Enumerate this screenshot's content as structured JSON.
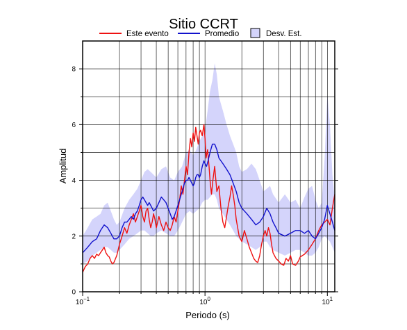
{
  "chart_data": {
    "type": "line",
    "title": "Sitio CCRT",
    "xlabel": "Periodo (s)",
    "ylabel": "Amplitud",
    "xscale": "log",
    "xlim": [
      0.1,
      11.5
    ],
    "ylim": [
      0,
      9
    ],
    "grid": true,
    "legend_position": "top",
    "x_ticks": [
      {
        "value": 0.1,
        "base": "10",
        "exp": "−1"
      },
      {
        "value": 1,
        "base": "10",
        "exp": "0"
      },
      {
        "value": 10,
        "base": "10",
        "exp": "1"
      }
    ],
    "y_ticks": [
      {
        "value": 0,
        "label": "0"
      },
      {
        "value": 2,
        "label": "2"
      },
      {
        "value": 4,
        "label": "4"
      },
      {
        "value": 6,
        "label": "6"
      },
      {
        "value": 8,
        "label": "8"
      }
    ],
    "legend": [
      {
        "kind": "line",
        "label": "Este evento",
        "color": "#ee1111"
      },
      {
        "kind": "line",
        "label": "Promedio",
        "color": "#1111cc"
      },
      {
        "kind": "box",
        "label": "Desv. Est.",
        "color": "#d4d4fb"
      }
    ],
    "series": [
      {
        "name": "Este evento",
        "color": "#ee1111",
        "x": [
          0.1,
          0.105,
          0.11,
          0.115,
          0.12,
          0.125,
          0.13,
          0.135,
          0.14,
          0.145,
          0.15,
          0.155,
          0.16,
          0.165,
          0.17,
          0.175,
          0.18,
          0.19,
          0.2,
          0.21,
          0.22,
          0.23,
          0.24,
          0.25,
          0.26,
          0.27,
          0.28,
          0.29,
          0.3,
          0.31,
          0.32,
          0.33,
          0.34,
          0.35,
          0.36,
          0.37,
          0.38,
          0.39,
          0.4,
          0.42,
          0.44,
          0.46,
          0.48,
          0.5,
          0.52,
          0.54,
          0.56,
          0.58,
          0.6,
          0.62,
          0.64,
          0.66,
          0.68,
          0.7,
          0.72,
          0.74,
          0.76,
          0.78,
          0.8,
          0.82,
          0.84,
          0.86,
          0.88,
          0.9,
          0.92,
          0.95,
          0.98,
          1.0,
          1.02,
          1.05,
          1.08,
          1.1,
          1.13,
          1.16,
          1.2,
          1.25,
          1.3,
          1.35,
          1.4,
          1.45,
          1.5,
          1.55,
          1.6,
          1.65,
          1.7,
          1.75,
          1.8,
          1.85,
          1.9,
          1.95,
          2.0,
          2.1,
          2.2,
          2.3,
          2.4,
          2.5,
          2.6,
          2.7,
          2.8,
          2.9,
          3.0,
          3.1,
          3.2,
          3.3,
          3.4,
          3.5,
          3.6,
          3.8,
          4.0,
          4.2,
          4.4,
          4.6,
          4.8,
          5.0,
          5.2,
          5.5,
          5.8,
          6.0,
          6.5,
          7.0,
          7.5,
          8.0,
          8.5,
          9.0,
          9.5,
          10.0,
          10.5,
          11.0,
          11.5
        ],
        "y": [
          0.7,
          0.9,
          1.0,
          1.2,
          1.3,
          1.2,
          1.35,
          1.3,
          1.4,
          1.5,
          1.6,
          1.4,
          1.3,
          1.25,
          1.1,
          1.0,
          1.05,
          1.3,
          1.7,
          2.0,
          2.3,
          2.1,
          2.4,
          2.6,
          2.8,
          2.5,
          2.7,
          2.9,
          3.1,
          2.7,
          2.5,
          2.9,
          3.0,
          2.6,
          2.3,
          2.5,
          2.8,
          2.6,
          2.3,
          2.7,
          2.4,
          2.2,
          2.5,
          2.3,
          2.2,
          2.4,
          2.7,
          2.5,
          2.9,
          3.3,
          3.8,
          3.5,
          4.0,
          4.5,
          4.2,
          5.0,
          5.5,
          5.2,
          5.7,
          5.4,
          5.9,
          5.6,
          5.3,
          5.7,
          5.8,
          5.6,
          6.0,
          5.5,
          4.8,
          5.1,
          4.5,
          4.0,
          3.5,
          4.0,
          4.5,
          3.6,
          3.8,
          3.0,
          2.5,
          2.3,
          2.7,
          3.1,
          3.4,
          3.8,
          3.5,
          3.1,
          2.6,
          2.3,
          2.0,
          1.9,
          1.8,
          2.2,
          1.9,
          1.6,
          1.4,
          1.2,
          1.1,
          1.05,
          1.3,
          1.7,
          2.0,
          2.2,
          2.0,
          2.3,
          2.1,
          1.7,
          1.4,
          1.2,
          1.1,
          1.0,
          0.95,
          1.2,
          1.1,
          1.3,
          1.0,
          0.95,
          1.1,
          1.25,
          1.35,
          1.5,
          1.7,
          1.9,
          2.2,
          2.4,
          2.5,
          2.6,
          2.4,
          3.0,
          3.5
        ]
      },
      {
        "name": "Promedio",
        "color": "#1111cc",
        "x": [
          0.1,
          0.105,
          0.11,
          0.12,
          0.13,
          0.14,
          0.15,
          0.16,
          0.17,
          0.18,
          0.19,
          0.2,
          0.21,
          0.22,
          0.23,
          0.24,
          0.25,
          0.26,
          0.27,
          0.28,
          0.29,
          0.3,
          0.31,
          0.32,
          0.33,
          0.34,
          0.35,
          0.36,
          0.37,
          0.38,
          0.4,
          0.42,
          0.44,
          0.46,
          0.48,
          0.5,
          0.52,
          0.54,
          0.56,
          0.58,
          0.6,
          0.62,
          0.64,
          0.66,
          0.68,
          0.7,
          0.72,
          0.74,
          0.76,
          0.78,
          0.8,
          0.82,
          0.84,
          0.86,
          0.88,
          0.9,
          0.92,
          0.95,
          0.98,
          1.0,
          1.03,
          1.06,
          1.1,
          1.15,
          1.2,
          1.25,
          1.3,
          1.4,
          1.5,
          1.6,
          1.7,
          1.8,
          1.9,
          2.0,
          2.2,
          2.4,
          2.6,
          2.8,
          3.0,
          3.2,
          3.4,
          3.6,
          3.8,
          4.0,
          4.5,
          5.0,
          5.5,
          6.0,
          6.5,
          7.0,
          7.5,
          8.0,
          8.5,
          9.0,
          9.5,
          10.0,
          10.5,
          11.0,
          11.5
        ],
        "y": [
          1.4,
          1.5,
          1.6,
          1.8,
          1.9,
          2.2,
          2.4,
          2.3,
          2.1,
          1.9,
          1.9,
          2.0,
          2.3,
          2.5,
          2.5,
          2.6,
          2.7,
          2.6,
          2.8,
          2.9,
          3.1,
          3.3,
          3.4,
          3.3,
          3.2,
          3.1,
          3.2,
          3.1,
          3.0,
          2.9,
          3.0,
          3.2,
          3.4,
          3.3,
          3.2,
          3.0,
          2.8,
          2.6,
          2.7,
          2.9,
          3.1,
          3.3,
          3.5,
          3.7,
          3.9,
          4.0,
          4.0,
          4.1,
          4.0,
          3.9,
          3.8,
          3.9,
          4.1,
          4.2,
          4.2,
          4.1,
          4.2,
          4.5,
          4.7,
          4.6,
          4.5,
          4.7,
          5.0,
          5.3,
          5.3,
          5.1,
          4.8,
          4.6,
          4.4,
          4.2,
          3.9,
          3.6,
          3.2,
          3.0,
          2.8,
          2.6,
          2.4,
          2.5,
          2.7,
          3.0,
          2.8,
          2.5,
          2.3,
          2.1,
          2.0,
          2.1,
          2.2,
          2.2,
          2.1,
          2.2,
          2.0,
          1.9,
          2.1,
          2.3,
          2.6,
          3.1,
          2.8,
          2.5,
          2.2
        ]
      },
      {
        "name": "Desv. Est.",
        "color": "#d4d4fb",
        "x": [
          0.1,
          0.11,
          0.12,
          0.13,
          0.14,
          0.15,
          0.16,
          0.17,
          0.18,
          0.19,
          0.2,
          0.22,
          0.24,
          0.26,
          0.28,
          0.3,
          0.32,
          0.34,
          0.36,
          0.38,
          0.4,
          0.44,
          0.48,
          0.52,
          0.56,
          0.6,
          0.65,
          0.7,
          0.75,
          0.8,
          0.85,
          0.9,
          0.95,
          1.0,
          1.05,
          1.1,
          1.15,
          1.2,
          1.25,
          1.3,
          1.4,
          1.5,
          1.6,
          1.7,
          1.8,
          1.9,
          2.0,
          2.2,
          2.4,
          2.6,
          2.8,
          3.0,
          3.2,
          3.4,
          3.6,
          4.0,
          4.5,
          5.0,
          5.5,
          6.0,
          6.5,
          7.0,
          7.5,
          8.0,
          8.5,
          9.0,
          9.5,
          10.0,
          10.5,
          11.0,
          11.5
        ],
        "low": [
          1.0,
          1.1,
          1.3,
          1.4,
          1.5,
          1.6,
          1.6,
          1.5,
          1.4,
          1.4,
          1.5,
          1.7,
          1.9,
          2.0,
          2.1,
          2.2,
          2.2,
          2.1,
          2.0,
          2.0,
          2.1,
          2.2,
          2.1,
          2.0,
          2.0,
          2.2,
          2.5,
          2.8,
          2.9,
          2.8,
          2.9,
          3.0,
          3.2,
          3.3,
          3.3,
          3.4,
          3.5,
          3.5,
          3.3,
          3.0,
          2.8,
          2.6,
          2.4,
          2.2,
          2.0,
          1.9,
          1.8,
          1.7,
          1.6,
          1.5,
          1.6,
          1.8,
          1.8,
          1.6,
          1.5,
          1.4,
          1.3,
          1.4,
          1.5,
          1.5,
          1.4,
          1.3,
          1.3,
          1.4,
          1.6,
          1.9,
          2.0,
          1.9,
          1.8,
          1.6,
          1.4
        ],
        "high": [
          2.0,
          2.3,
          2.6,
          2.7,
          2.8,
          3.1,
          3.2,
          2.9,
          2.6,
          2.4,
          2.5,
          3.0,
          3.3,
          3.5,
          3.7,
          4.0,
          4.3,
          4.4,
          4.3,
          4.2,
          4.1,
          4.4,
          4.5,
          4.1,
          4.0,
          4.3,
          4.5,
          5.0,
          5.1,
          4.9,
          5.1,
          5.4,
          5.6,
          5.8,
          6.5,
          7.2,
          7.6,
          8.2,
          7.8,
          7.0,
          6.5,
          6.0,
          5.6,
          5.3,
          5.0,
          4.5,
          4.3,
          4.4,
          4.6,
          4.4,
          4.0,
          3.6,
          3.7,
          3.8,
          3.5,
          3.2,
          3.5,
          3.2,
          3.3,
          3.0,
          3.4,
          3.7,
          3.8,
          3.3,
          3.0,
          3.2,
          4.8,
          7.1,
          6.0,
          4.2,
          3.3
        ]
      }
    ]
  }
}
